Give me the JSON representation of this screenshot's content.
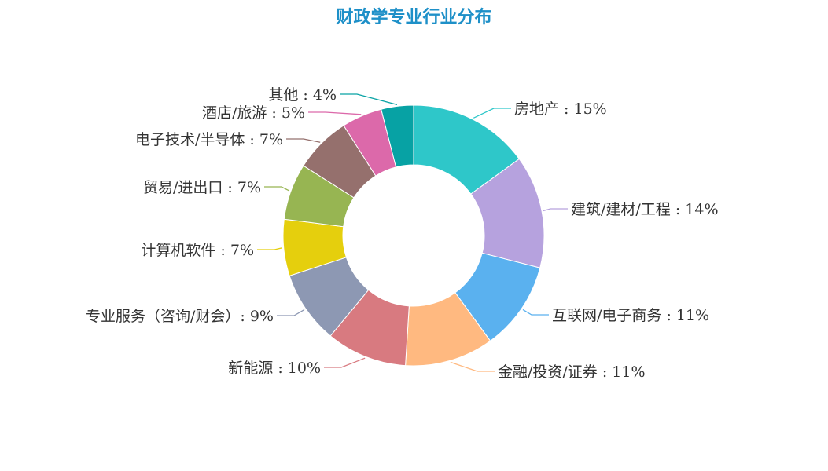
{
  "chart_data": {
    "type": "pie",
    "title": "财政学专业行业分布",
    "colors": [
      "#2ec7c9",
      "#b6a2de",
      "#5ab1ef",
      "#ffb980",
      "#d87a80",
      "#8d98b3",
      "#e5cf0d",
      "#97b552",
      "#95706d",
      "#dc69aa",
      "#07a2a4"
    ],
    "slices": [
      {
        "label": "房地产 : 15%",
        "value": 15
      },
      {
        "label": "建筑/建材/工程 : 14%",
        "value": 14
      },
      {
        "label": "互联网/电子商务 : 11%",
        "value": 11
      },
      {
        "label": "金融/投资/证券 : 11%",
        "value": 11
      },
      {
        "label": "新能源 : 10%",
        "value": 10
      },
      {
        "label": "专业服务（咨询/财会）: 9%",
        "value": 9
      },
      {
        "label": "计算机软件 : 7%",
        "value": 7
      },
      {
        "label": "贸易/进出口 : 7%",
        "value": 7
      },
      {
        "label": "电子技术/半导体 : 7%",
        "value": 7
      },
      {
        "label": "酒店/旅游 : 5%",
        "value": 5
      },
      {
        "label": "其他 : 4%",
        "value": 4
      }
    ]
  }
}
